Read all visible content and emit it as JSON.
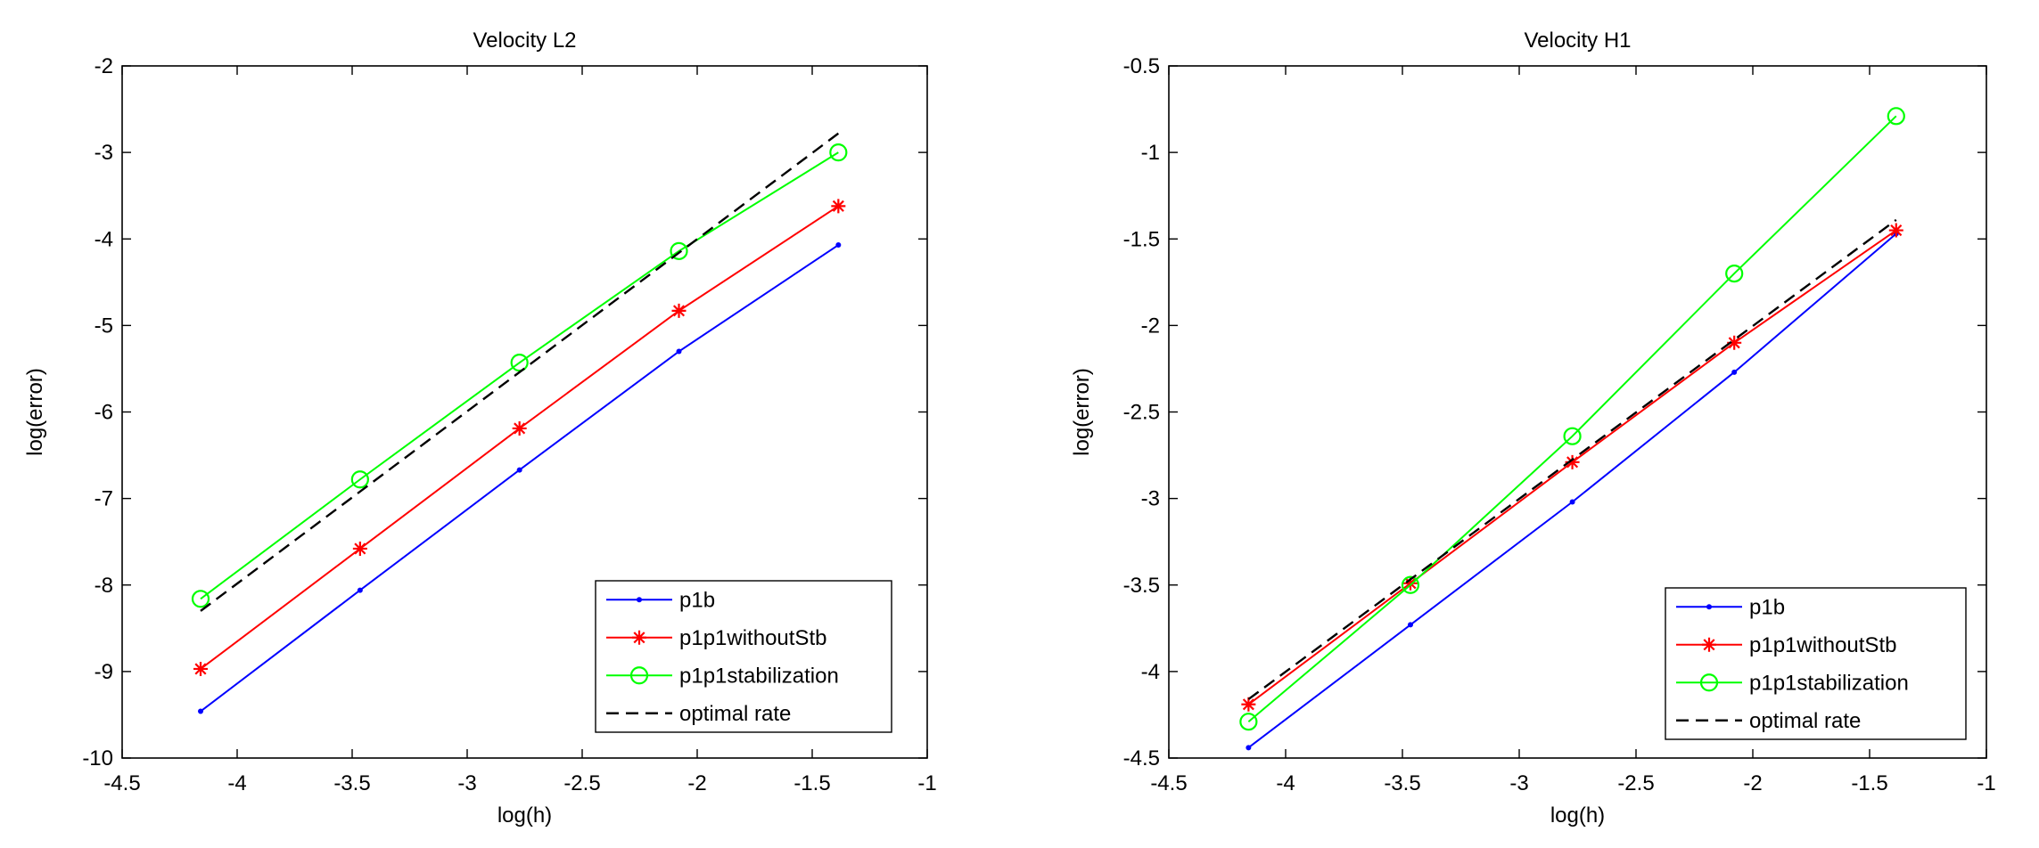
{
  "chart_data": [
    {
      "type": "line",
      "title": "Velocity L2",
      "xlabel": "log(h)",
      "ylabel": "log(error)",
      "xlim": [
        -4.5,
        -1
      ],
      "ylim": [
        -10,
        -2
      ],
      "xticks": [
        -4.5,
        -4,
        -3.5,
        -3,
        -2.5,
        -2,
        -1.5,
        -1
      ],
      "yticks": [
        -10,
        -9,
        -8,
        -7,
        -6,
        -5,
        -4,
        -3,
        -2
      ],
      "xtick_labels": [
        "-4.5",
        "-4",
        "-3.5",
        "-3",
        "-2.5",
        "-2",
        "-1.5",
        "-1"
      ],
      "ytick_labels": [
        "-10",
        "-9",
        "-8",
        "-7",
        "-6",
        "-5",
        "-4",
        "-3",
        "-2"
      ],
      "grid": false,
      "legend": "bottom-right",
      "series": [
        {
          "name": "p1b",
          "color": "#0000ff",
          "marker": "dot",
          "dash": "solid",
          "x": [
            -4.1589,
            -3.4657,
            -2.7726,
            -2.0794,
            -1.3863
          ],
          "y": [
            -9.46,
            -8.06,
            -6.67,
            -5.3,
            -4.07
          ]
        },
        {
          "name": "p1p1withoutStb",
          "color": "#ff0000",
          "marker": "star",
          "dash": "solid",
          "x": [
            -4.1589,
            -3.4657,
            -2.7726,
            -2.0794,
            -1.3863
          ],
          "y": [
            -8.97,
            -7.58,
            -6.19,
            -4.83,
            -3.62
          ]
        },
        {
          "name": "p1p1stabilization",
          "color": "#00ff00",
          "marker": "circle",
          "dash": "solid",
          "x": [
            -4.1589,
            -3.4657,
            -2.7726,
            -2.0794,
            -1.3863
          ],
          "y": [
            -8.16,
            -6.78,
            -5.43,
            -4.14,
            -3.0
          ]
        },
        {
          "name": "optimal rate",
          "color": "#000000",
          "marker": "none",
          "dash": "dashed",
          "x": [
            -4.1589,
            -1.3863
          ],
          "y": [
            -8.3,
            -2.78
          ]
        }
      ]
    },
    {
      "type": "line",
      "title": "Velocity H1",
      "xlabel": "log(h)",
      "ylabel": "log(error)",
      "xlim": [
        -4.5,
        -1
      ],
      "ylim": [
        -4.5,
        -0.5
      ],
      "xticks": [
        -4.5,
        -4,
        -3.5,
        -3,
        -2.5,
        -2,
        -1.5,
        -1
      ],
      "yticks": [
        -4.5,
        -4,
        -3.5,
        -3,
        -2.5,
        -2,
        -1.5,
        -1,
        -0.5
      ],
      "xtick_labels": [
        "-4.5",
        "-4",
        "-3.5",
        "-3",
        "-2.5",
        "-2",
        "-1.5",
        "-1"
      ],
      "ytick_labels": [
        "-4.5",
        "-4",
        "-3.5",
        "-3",
        "-2.5",
        "-2",
        "-1.5",
        "-1",
        "-0.5"
      ],
      "grid": false,
      "legend": "bottom-right",
      "series": [
        {
          "name": "p1b",
          "color": "#0000ff",
          "marker": "dot",
          "dash": "solid",
          "x": [
            -4.1589,
            -3.4657,
            -2.7726,
            -2.0794,
            -1.3863
          ],
          "y": [
            -4.44,
            -3.73,
            -3.02,
            -2.27,
            -1.47
          ]
        },
        {
          "name": "p1p1withoutStb",
          "color": "#ff0000",
          "marker": "star",
          "dash": "solid",
          "x": [
            -4.1589,
            -3.4657,
            -2.7726,
            -2.0794,
            -1.3863
          ],
          "y": [
            -4.19,
            -3.49,
            -2.79,
            -2.1,
            -1.45
          ]
        },
        {
          "name": "p1p1stabilization",
          "color": "#00ff00",
          "marker": "circle",
          "dash": "solid",
          "x": [
            -4.1589,
            -3.4657,
            -2.7726,
            -2.0794,
            -1.3863
          ],
          "y": [
            -4.29,
            -3.5,
            -2.64,
            -1.7,
            -0.79
          ]
        },
        {
          "name": "optimal rate",
          "color": "#000000",
          "marker": "none",
          "dash": "dashed",
          "x": [
            -4.1589,
            -1.3863
          ],
          "y": [
            -4.16,
            -1.39
          ]
        }
      ]
    }
  ]
}
